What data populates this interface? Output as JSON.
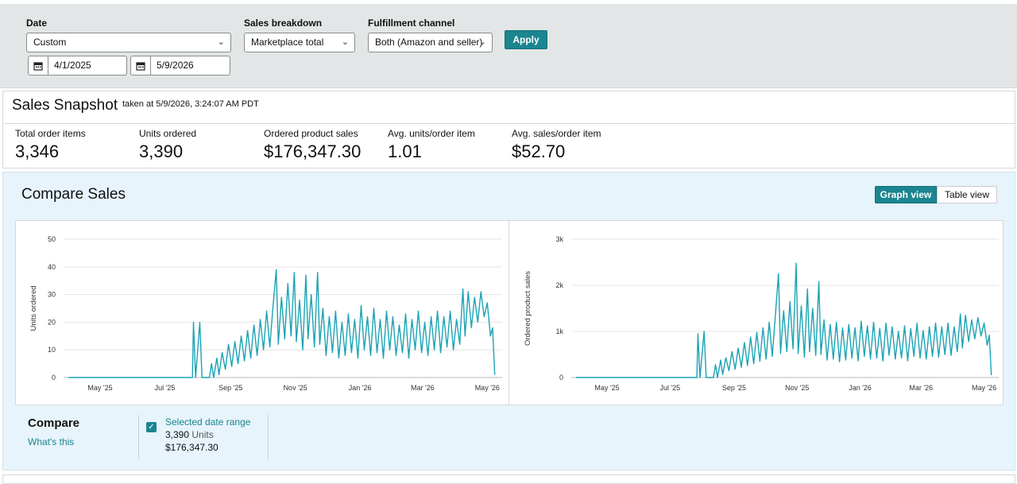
{
  "filters": {
    "date_label": "Date",
    "date_value": "Custom",
    "start_date": "4/1/2025",
    "end_date": "5/9/2026",
    "breakdown_label": "Sales breakdown",
    "breakdown_value": "Marketplace total",
    "channel_label": "Fulfillment channel",
    "channel_value": "Both (Amazon and seller)",
    "apply_label": "Apply"
  },
  "snapshot": {
    "title": "Sales Snapshot",
    "taken": "taken at 5/9/2026, 3:24:07 AM PDT",
    "metrics": [
      {
        "label": "Total order items",
        "value": "3,346"
      },
      {
        "label": "Units ordered",
        "value": "3,390"
      },
      {
        "label": "Ordered product sales",
        "value": "$176,347.30"
      },
      {
        "label": "Avg. units/order item",
        "value": "1.01"
      },
      {
        "label": "Avg. sales/order item",
        "value": "$52.70"
      }
    ]
  },
  "compare": {
    "title": "Compare Sales",
    "graph_view_label": "Graph view",
    "table_view_label": "Table view",
    "compare_label": "Compare",
    "whats_this": "What's this",
    "legend": {
      "range_label": "Selected date range",
      "units_value": "3,390",
      "units_label": "Units",
      "sales_value": "$176,347.30"
    }
  },
  "colors": {
    "accent": "#1b8590",
    "series": "#1aa3b4"
  },
  "chart_data": [
    {
      "type": "line",
      "ylabel": "Units ordered",
      "xlabel": "",
      "ylim": [
        0,
        50
      ],
      "yticks": [
        "0",
        "10",
        "20",
        "30",
        "40",
        "50"
      ],
      "xtick_labels": [
        "May '25",
        "Jul '25",
        "Sep '25",
        "Nov '25",
        "Jan '26",
        "Mar '26",
        "May '26"
      ],
      "xlim": [
        "2025-04-01",
        "2026-05-09"
      ],
      "grid": true,
      "series": [
        {
          "points": [
            [
              "2025-04-01",
              0
            ],
            [
              "2025-07-27",
              0
            ],
            [
              "2025-07-28",
              20
            ],
            [
              "2025-07-30",
              0
            ],
            [
              "2025-08-03",
              20
            ],
            [
              "2025-08-05",
              0
            ],
            [
              "2025-08-12",
              0
            ],
            [
              "2025-08-14",
              5
            ],
            [
              "2025-08-16",
              0
            ],
            [
              "2025-08-19",
              7
            ],
            [
              "2025-08-21",
              1
            ],
            [
              "2025-08-24",
              9
            ],
            [
              "2025-08-27",
              3
            ],
            [
              "2025-08-30",
              12
            ],
            [
              "2025-09-02",
              4
            ],
            [
              "2025-09-05",
              13
            ],
            [
              "2025-09-08",
              5
            ],
            [
              "2025-09-11",
              15
            ],
            [
              "2025-09-14",
              6
            ],
            [
              "2025-09-17",
              17
            ],
            [
              "2025-09-20",
              7
            ],
            [
              "2025-09-23",
              19
            ],
            [
              "2025-09-26",
              8
            ],
            [
              "2025-09-29",
              21
            ],
            [
              "2025-10-02",
              10
            ],
            [
              "2025-10-05",
              24
            ],
            [
              "2025-10-08",
              11
            ],
            [
              "2025-10-11",
              26
            ],
            [
              "2025-10-14",
              39
            ],
            [
              "2025-10-16",
              12
            ],
            [
              "2025-10-19",
              29
            ],
            [
              "2025-10-22",
              14
            ],
            [
              "2025-10-25",
              34
            ],
            [
              "2025-10-28",
              15
            ],
            [
              "2025-10-31",
              38
            ],
            [
              "2025-11-02",
              13
            ],
            [
              "2025-11-05",
              28
            ],
            [
              "2025-11-08",
              10
            ],
            [
              "2025-11-11",
              37
            ],
            [
              "2025-11-13",
              14
            ],
            [
              "2025-11-16",
              30
            ],
            [
              "2025-11-19",
              11
            ],
            [
              "2025-11-22",
              38
            ],
            [
              "2025-11-24",
              12
            ],
            [
              "2025-11-27",
              25
            ],
            [
              "2025-11-30",
              8
            ],
            [
              "2025-12-03",
              22
            ],
            [
              "2025-12-06",
              9
            ],
            [
              "2025-12-09",
              24
            ],
            [
              "2025-12-12",
              7
            ],
            [
              "2025-12-15",
              20
            ],
            [
              "2025-12-18",
              8
            ],
            [
              "2025-12-21",
              23
            ],
            [
              "2025-12-24",
              9
            ],
            [
              "2025-12-27",
              21
            ],
            [
              "2025-12-30",
              7
            ],
            [
              "2026-01-02",
              26
            ],
            [
              "2026-01-05",
              10
            ],
            [
              "2026-01-08",
              22
            ],
            [
              "2026-01-11",
              8
            ],
            [
              "2026-01-14",
              25
            ],
            [
              "2026-01-17",
              9
            ],
            [
              "2026-01-20",
              21
            ],
            [
              "2026-01-23",
              7
            ],
            [
              "2026-01-26",
              24
            ],
            [
              "2026-01-29",
              10
            ],
            [
              "2026-02-01",
              22
            ],
            [
              "2026-02-04",
              8
            ],
            [
              "2026-02-07",
              19
            ],
            [
              "2026-02-10",
              9
            ],
            [
              "2026-02-13",
              23
            ],
            [
              "2026-02-16",
              7
            ],
            [
              "2026-02-19",
              21
            ],
            [
              "2026-02-22",
              10
            ],
            [
              "2026-02-25",
              24
            ],
            [
              "2026-02-28",
              9
            ],
            [
              "2026-03-03",
              20
            ],
            [
              "2026-03-06",
              8
            ],
            [
              "2026-03-09",
              22
            ],
            [
              "2026-03-12",
              10
            ],
            [
              "2026-03-15",
              24
            ],
            [
              "2026-03-18",
              9
            ],
            [
              "2026-03-21",
              22
            ],
            [
              "2026-03-24",
              11
            ],
            [
              "2026-03-27",
              24
            ],
            [
              "2026-03-30",
              10
            ],
            [
              "2026-04-02",
              21
            ],
            [
              "2026-04-05",
              12
            ],
            [
              "2026-04-08",
              32
            ],
            [
              "2026-04-10",
              15
            ],
            [
              "2026-04-13",
              31
            ],
            [
              "2026-04-16",
              18
            ],
            [
              "2026-04-19",
              29
            ],
            [
              "2026-04-22",
              20
            ],
            [
              "2026-04-25",
              31
            ],
            [
              "2026-04-28",
              22
            ],
            [
              "2026-05-01",
              27
            ],
            [
              "2026-05-04",
              15
            ],
            [
              "2026-05-06",
              18
            ],
            [
              "2026-05-08",
              1
            ]
          ]
        }
      ]
    },
    {
      "type": "line",
      "ylabel": "Ordered product sales",
      "xlabel": "",
      "ylim": [
        0,
        3000
      ],
      "yticks": [
        "0",
        "1k",
        "2k",
        "3k"
      ],
      "xtick_labels": [
        "May '25",
        "Jul '25",
        "Sep '25",
        "Nov '25",
        "Jan '26",
        "Mar '26",
        "May '26"
      ],
      "xlim": [
        "2025-04-01",
        "2026-05-09"
      ],
      "grid": true,
      "series": [
        {
          "points": [
            [
              "2025-04-01",
              0
            ],
            [
              "2025-07-27",
              0
            ],
            [
              "2025-07-28",
              950
            ],
            [
              "2025-07-30",
              0
            ],
            [
              "2025-08-03",
              1000
            ],
            [
              "2025-08-05",
              0
            ],
            [
              "2025-08-12",
              0
            ],
            [
              "2025-08-14",
              280
            ],
            [
              "2025-08-16",
              0
            ],
            [
              "2025-08-19",
              380
            ],
            [
              "2025-08-21",
              60
            ],
            [
              "2025-08-24",
              430
            ],
            [
              "2025-08-27",
              150
            ],
            [
              "2025-08-30",
              560
            ],
            [
              "2025-09-02",
              180
            ],
            [
              "2025-09-05",
              640
            ],
            [
              "2025-09-08",
              220
            ],
            [
              "2025-09-11",
              760
            ],
            [
              "2025-09-14",
              260
            ],
            [
              "2025-09-17",
              880
            ],
            [
              "2025-09-20",
              300
            ],
            [
              "2025-09-23",
              980
            ],
            [
              "2025-09-26",
              350
            ],
            [
              "2025-09-29",
              1080
            ],
            [
              "2025-10-02",
              400
            ],
            [
              "2025-10-05",
              1200
            ],
            [
              "2025-10-08",
              460
            ],
            [
              "2025-10-11",
              1350
            ],
            [
              "2025-10-14",
              2250
            ],
            [
              "2025-10-16",
              520
            ],
            [
              "2025-10-19",
              1450
            ],
            [
              "2025-10-22",
              560
            ],
            [
              "2025-10-25",
              1650
            ],
            [
              "2025-10-28",
              620
            ],
            [
              "2025-10-31",
              2480
            ],
            [
              "2025-11-02",
              520
            ],
            [
              "2025-11-05",
              1550
            ],
            [
              "2025-11-08",
              440
            ],
            [
              "2025-11-11",
              1920
            ],
            [
              "2025-11-13",
              560
            ],
            [
              "2025-11-16",
              1500
            ],
            [
              "2025-11-19",
              480
            ],
            [
              "2025-11-22",
              2080
            ],
            [
              "2025-11-24",
              500
            ],
            [
              "2025-11-27",
              1250
            ],
            [
              "2025-11-30",
              380
            ],
            [
              "2025-12-03",
              1150
            ],
            [
              "2025-12-06",
              400
            ],
            [
              "2025-12-09",
              1200
            ],
            [
              "2025-12-12",
              340
            ],
            [
              "2025-12-15",
              1080
            ],
            [
              "2025-12-18",
              380
            ],
            [
              "2025-12-21",
              1150
            ],
            [
              "2025-12-24",
              420
            ],
            [
              "2025-12-27",
              1080
            ],
            [
              "2025-12-30",
              360
            ],
            [
              "2026-01-02",
              1220
            ],
            [
              "2026-01-05",
              460
            ],
            [
              "2026-01-08",
              1120
            ],
            [
              "2026-01-11",
              400
            ],
            [
              "2026-01-14",
              1200
            ],
            [
              "2026-01-17",
              420
            ],
            [
              "2026-01-20",
              1070
            ],
            [
              "2026-01-23",
              360
            ],
            [
              "2026-01-26",
              1180
            ],
            [
              "2026-01-29",
              480
            ],
            [
              "2026-02-01",
              1100
            ],
            [
              "2026-02-04",
              400
            ],
            [
              "2026-02-07",
              1000
            ],
            [
              "2026-02-10",
              420
            ],
            [
              "2026-02-13",
              1120
            ],
            [
              "2026-02-16",
              360
            ],
            [
              "2026-02-19",
              1060
            ],
            [
              "2026-02-22",
              460
            ],
            [
              "2026-02-25",
              1180
            ],
            [
              "2026-02-28",
              420
            ],
            [
              "2026-03-03",
              1020
            ],
            [
              "2026-03-06",
              400
            ],
            [
              "2026-03-09",
              1100
            ],
            [
              "2026-03-12",
              460
            ],
            [
              "2026-03-15",
              1180
            ],
            [
              "2026-03-18",
              440
            ],
            [
              "2026-03-21",
              1100
            ],
            [
              "2026-03-24",
              500
            ],
            [
              "2026-03-27",
              1180
            ],
            [
              "2026-03-30",
              480
            ],
            [
              "2026-04-02",
              1100
            ],
            [
              "2026-04-05",
              560
            ],
            [
              "2026-04-08",
              1380
            ],
            [
              "2026-04-10",
              640
            ],
            [
              "2026-04-13",
              1350
            ],
            [
              "2026-04-16",
              780
            ],
            [
              "2026-04-19",
              1250
            ],
            [
              "2026-04-22",
              840
            ],
            [
              "2026-04-25",
              1300
            ],
            [
              "2026-04-28",
              900
            ],
            [
              "2026-05-01",
              1180
            ],
            [
              "2026-05-04",
              700
            ],
            [
              "2026-05-06",
              920
            ],
            [
              "2026-05-08",
              50
            ]
          ]
        }
      ]
    }
  ]
}
